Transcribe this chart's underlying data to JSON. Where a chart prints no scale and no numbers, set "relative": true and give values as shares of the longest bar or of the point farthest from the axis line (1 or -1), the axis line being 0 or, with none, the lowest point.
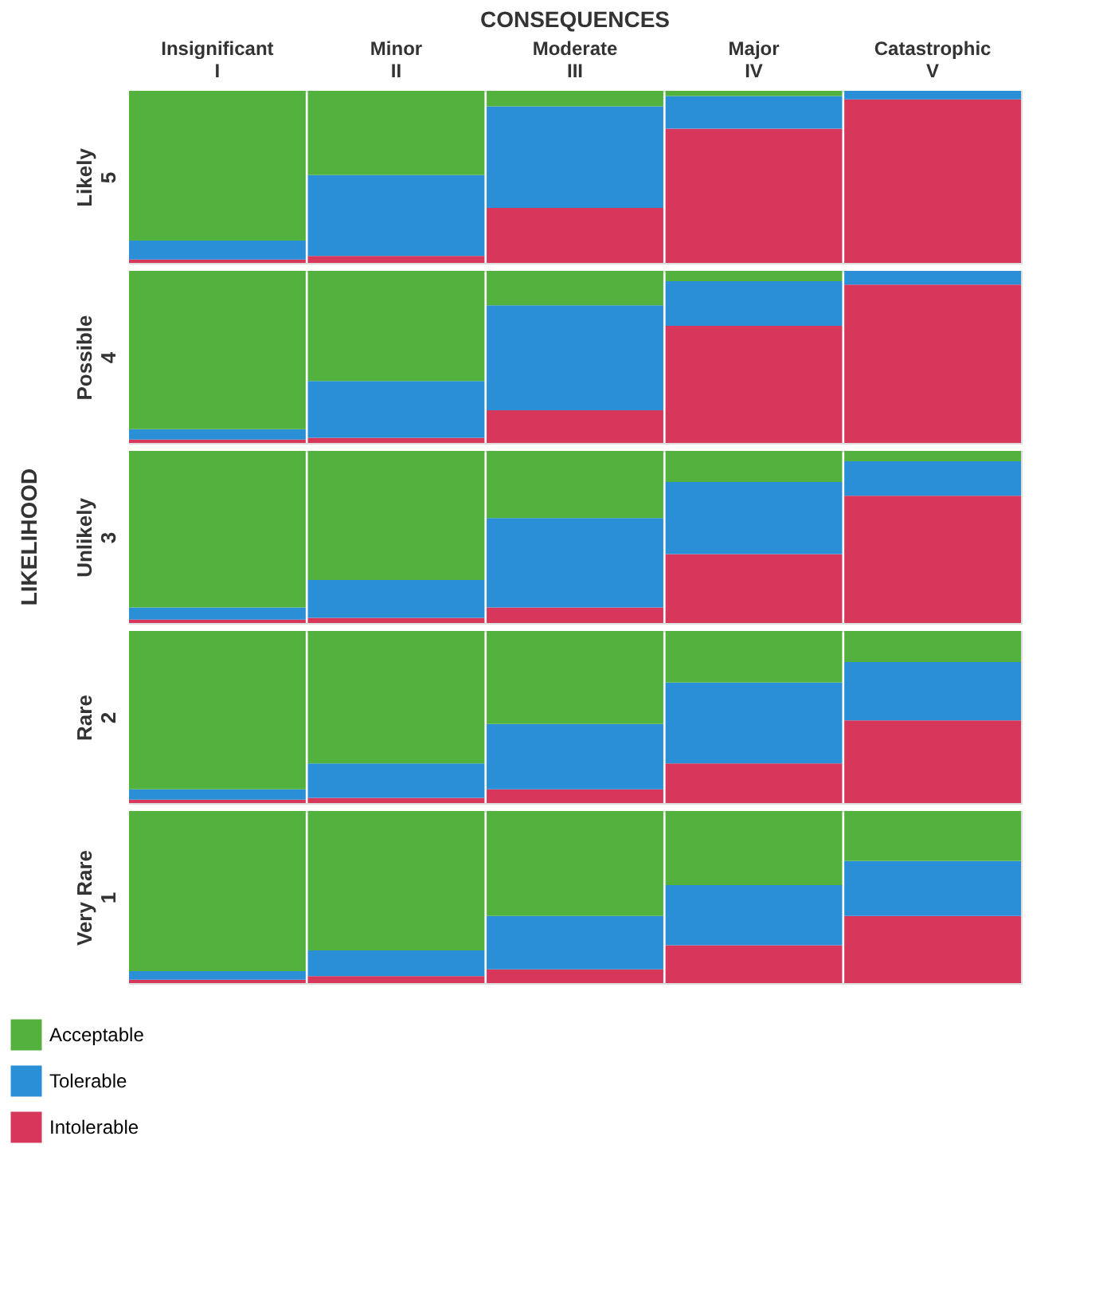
{
  "chart_data": [
    {
      "type": "bar",
      "title": "CONSEQUENCES",
      "ylabel": "Likely\n5",
      "categories": [
        "Insignificant\nI",
        "Minor\nII",
        "Moderate\nIII",
        "Major\nIV",
        "Catastrophic\nV"
      ],
      "stacked": true,
      "relative": true,
      "tick_labels": "x",
      "legend": false,
      "series": [
        {
          "color": "#d6375a",
          "values": [
            0.02,
            0.04,
            0.32,
            0.78,
            0.95
          ]
        },
        {
          "color": "#2a8fd6",
          "values": [
            0.11,
            0.47,
            0.59,
            0.19,
            0.05
          ]
        },
        {
          "color": "#53b23e",
          "values": [
            0.87,
            0.49,
            0.09,
            0.03,
            0
          ]
        }
      ]
    },
    {
      "type": "bar",
      "ylabel": "Possible\n4",
      "categories": [
        null,
        null,
        null,
        null,
        null
      ],
      "stacked": true,
      "relative": true,
      "tick_labels": false,
      "legend": false,
      "series": [
        {
          "color": "#d6375a",
          "values": [
            0.02,
            0.03,
            0.19,
            0.68,
            0.92
          ]
        },
        {
          "color": "#2a8fd6",
          "values": [
            0.06,
            0.33,
            0.61,
            0.26,
            0.08
          ]
        },
        {
          "color": "#53b23e",
          "values": [
            0.92,
            0.64,
            0.2,
            0.06,
            0
          ]
        }
      ]
    },
    {
      "type": "bar",
      "ylabel": "Unlikely\n3",
      "annotations": [
        "LIKELIHOOD"
      ],
      "categories": [
        null,
        null,
        null,
        null,
        null
      ],
      "stacked": true,
      "relative": true,
      "tick_labels": false,
      "legend": false,
      "series": [
        {
          "color": "#d6375a",
          "values": [
            0.02,
            0.03,
            0.09,
            0.4,
            0.74
          ]
        },
        {
          "color": "#2a8fd6",
          "values": [
            0.07,
            0.22,
            0.52,
            0.42,
            0.2
          ]
        },
        {
          "color": "#53b23e",
          "values": [
            0.91,
            0.75,
            0.39,
            0.18,
            0.06
          ]
        }
      ]
    },
    {
      "type": "bar",
      "ylabel": "Rare\n2",
      "categories": [
        null,
        null,
        null,
        null,
        null
      ],
      "stacked": true,
      "relative": true,
      "tick_labels": false,
      "legend": false,
      "series": [
        {
          "color": "#d6375a",
          "values": [
            0.02,
            0.03,
            0.08,
            0.23,
            0.48
          ]
        },
        {
          "color": "#2a8fd6",
          "values": [
            0.06,
            0.2,
            0.38,
            0.47,
            0.34
          ]
        },
        {
          "color": "#53b23e",
          "values": [
            0.92,
            0.77,
            0.54,
            0.3,
            0.18
          ]
        }
      ]
    },
    {
      "type": "bar",
      "ylabel": "Very Rare\n1",
      "categories": [
        null,
        null,
        null,
        null,
        null
      ],
      "stacked": true,
      "relative": true,
      "tick_labels": false,
      "legend": "bottom left",
      "series": [
        {
          "name": "Intolerable",
          "color": "#d6375a",
          "values": [
            0.02,
            0.04,
            0.08,
            0.22,
            0.39
          ]
        },
        {
          "name": "Tolerable",
          "color": "#2a8fd6",
          "values": [
            0.05,
            0.15,
            0.31,
            0.35,
            0.32
          ]
        },
        {
          "name": "Acceptable",
          "color": "#53b23e",
          "values": [
            0.93,
            0.81,
            0.61,
            0.43,
            0.29
          ]
        }
      ]
    }
  ]
}
